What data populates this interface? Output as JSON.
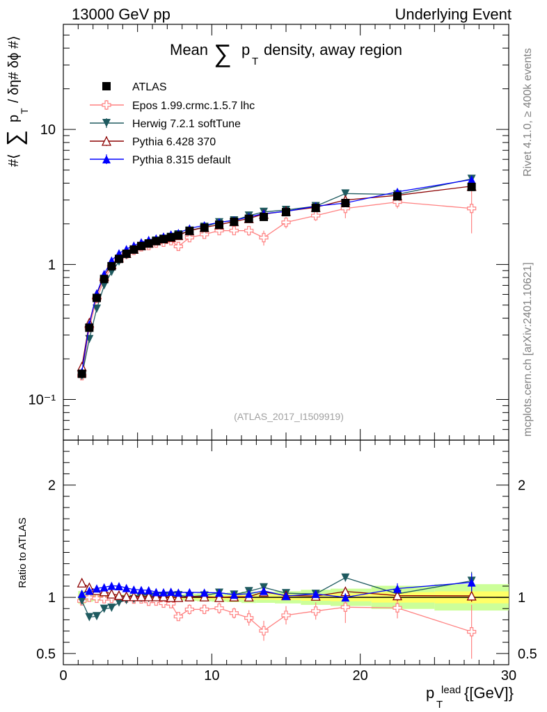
{
  "header": {
    "left": "13000 GeV pp",
    "right": "Underlying Event"
  },
  "side_text": {
    "rivet": "Rivet 4.1.0, ≥ 400k events",
    "mcplots": "mcplots.cern.ch [arXiv:2401.10621]"
  },
  "chart_data": {
    "type": "line",
    "title": "Mean ∑ p_T density, away region",
    "title_main": "Mean",
    "title_tail": "density, away region",
    "title_p": "p",
    "title_T": "T",
    "sum_symbol": "∑",
    "ylabel": "#⟨ ∑ p_T / δη# δϕ #⟩",
    "ylabel_pre": "#⟨",
    "ylabel_p": "p",
    "ylabel_T": "T",
    "ylabel_post": "/ δη# δϕ #⟩",
    "xlabel": "p_T^lead {[GeV]}",
    "xlabel_p": "p",
    "xlabel_T": "T",
    "xlabel_lead": "lead",
    "xlabel_unit": "{[GeV]}",
    "ratio_ylabel": "Ratio to ATLAS",
    "analysis_label": "(ATLAS_2017_I1509919)",
    "xlim": [
      0,
      30
    ],
    "ylim": [
      0.05,
      60
    ],
    "yscale": "log",
    "ratio_ylim": [
      0.4,
      2.4
    ],
    "x_ticks": [
      "0",
      "10",
      "20",
      "30"
    ],
    "y_ticks": [
      "10⁻¹",
      "1",
      "10"
    ],
    "ratio_ticks": [
      "0.5",
      "1",
      "2"
    ],
    "x": [
      1.25,
      1.75,
      2.25,
      2.75,
      3.25,
      3.75,
      4.25,
      4.75,
      5.25,
      5.75,
      6.25,
      6.75,
      7.25,
      7.75,
      8.5,
      9.5,
      10.5,
      11.5,
      12.5,
      13.5,
      15.0,
      17.0,
      19.0,
      22.5,
      27.5
    ],
    "legend": [
      "ATLAS",
      "Epos 1.99.crmc.1.5.7 lhc",
      "Herwig 7.2.1 softTune",
      "Pythia 6.428 370",
      "Pythia 8.315 default"
    ],
    "series": [
      {
        "name": "ATLAS",
        "color": "#000000",
        "marker": "square",
        "values": [
          0.155,
          0.34,
          0.565,
          0.78,
          0.97,
          1.1,
          1.2,
          1.29,
          1.37,
          1.43,
          1.49,
          1.54,
          1.59,
          1.64,
          1.77,
          1.87,
          1.97,
          2.07,
          2.18,
          2.25,
          2.44,
          2.62,
          2.85,
          3.2,
          3.75
        ],
        "err": [
          0.004,
          0.006,
          0.008,
          0.01,
          0.012,
          0.013,
          0.014,
          0.015,
          0.016,
          0.017,
          0.018,
          0.019,
          0.02,
          0.02,
          0.025,
          0.03,
          0.035,
          0.04,
          0.05,
          0.05,
          0.06,
          0.08,
          0.1,
          0.15,
          0.2
        ]
      },
      {
        "name": "Epos 1.99.crmc.1.5.7 lhc",
        "color": "#ff8080",
        "marker": "cross",
        "values": [
          0.15,
          0.34,
          0.56,
          0.77,
          0.96,
          1.1,
          1.19,
          1.27,
          1.35,
          1.38,
          1.44,
          1.46,
          1.5,
          1.36,
          1.58,
          1.67,
          1.78,
          1.78,
          1.78,
          1.58,
          2.05,
          2.3,
          2.6,
          2.9,
          2.6
        ],
        "err": [
          0.004,
          0.006,
          0.008,
          0.01,
          0.012,
          0.013,
          0.015,
          0.016,
          0.018,
          0.02,
          0.02,
          0.03,
          0.03,
          0.05,
          0.08,
          0.08,
          0.1,
          0.1,
          0.15,
          0.2,
          0.2,
          0.2,
          0.4,
          0.3,
          0.9
        ]
      },
      {
        "name": "Herwig 7.2.1 softTune",
        "color": "#1e5a5f",
        "marker": "triangle-down",
        "values": [
          0.15,
          0.28,
          0.47,
          0.7,
          0.88,
          1.05,
          1.17,
          1.27,
          1.36,
          1.42,
          1.5,
          1.55,
          1.6,
          1.67,
          1.78,
          1.9,
          2.05,
          2.12,
          2.3,
          2.45,
          2.53,
          2.7,
          3.35,
          3.3,
          4.3
        ],
        "err": [
          0.004,
          0.006,
          0.008,
          0.01,
          0.012,
          0.013,
          0.014,
          0.015,
          0.016,
          0.017,
          0.018,
          0.019,
          0.02,
          0.02,
          0.025,
          0.03,
          0.035,
          0.04,
          0.05,
          0.05,
          0.06,
          0.08,
          0.1,
          0.15,
          0.3
        ]
      },
      {
        "name": "Pythia 6.428 370",
        "color": "#8b0000",
        "marker": "triangle-up-open",
        "values": [
          0.175,
          0.37,
          0.6,
          0.82,
          1.0,
          1.12,
          1.21,
          1.3,
          1.38,
          1.44,
          1.5,
          1.55,
          1.59,
          1.64,
          1.78,
          1.88,
          1.97,
          2.08,
          2.19,
          2.36,
          2.48,
          2.65,
          3.0,
          3.25,
          3.8
        ],
        "err": [
          0.004,
          0.006,
          0.008,
          0.01,
          0.012,
          0.013,
          0.014,
          0.015,
          0.016,
          0.017,
          0.018,
          0.019,
          0.02,
          0.02,
          0.025,
          0.03,
          0.035,
          0.04,
          0.05,
          0.05,
          0.06,
          0.08,
          0.1,
          0.15,
          0.2
        ]
      },
      {
        "name": "Pythia 8.315 default",
        "color": "#0000ff",
        "marker": "triangle-up",
        "values": [
          0.16,
          0.36,
          0.61,
          0.85,
          1.07,
          1.21,
          1.3,
          1.38,
          1.46,
          1.52,
          1.56,
          1.61,
          1.67,
          1.71,
          1.85,
          1.95,
          2.05,
          2.12,
          2.25,
          2.38,
          2.47,
          2.7,
          2.85,
          3.45,
          4.25
        ],
        "err": [
          0.004,
          0.006,
          0.008,
          0.01,
          0.012,
          0.013,
          0.014,
          0.015,
          0.016,
          0.017,
          0.018,
          0.019,
          0.02,
          0.02,
          0.025,
          0.03,
          0.035,
          0.04,
          0.05,
          0.05,
          0.06,
          0.08,
          0.1,
          0.15,
          0.3
        ]
      }
    ]
  }
}
